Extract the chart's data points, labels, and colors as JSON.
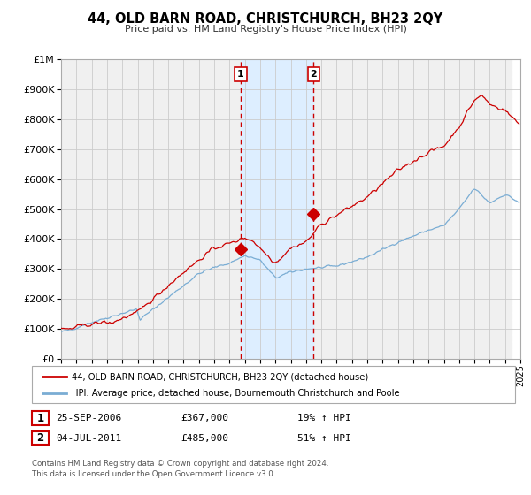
{
  "title": "44, OLD BARN ROAD, CHRISTCHURCH, BH23 2QY",
  "subtitle": "Price paid vs. HM Land Registry's House Price Index (HPI)",
  "hpi_label": "HPI: Average price, detached house, Bournemouth Christchurch and Poole",
  "property_label": "44, OLD BARN ROAD, CHRISTCHURCH, BH23 2QY (detached house)",
  "footnote1": "Contains HM Land Registry data © Crown copyright and database right 2024.",
  "footnote2": "This data is licensed under the Open Government Licence v3.0.",
  "sale1_date": "25-SEP-2006",
  "sale1_price": "£367,000",
  "sale1_hpi": "19% ↑ HPI",
  "sale2_date": "04-JUL-2011",
  "sale2_price": "£485,000",
  "sale2_hpi": "51% ↑ HPI",
  "sale1_year": 2006.73,
  "sale1_value": 367000,
  "sale2_year": 2011.5,
  "sale2_value": 485000,
  "shade_start": 2006.73,
  "shade_end": 2011.5,
  "hpi_color": "#7aadd4",
  "property_color": "#cc0000",
  "shade_color": "#ddeeff",
  "background_color": "#f0f0f0",
  "grid_color": "#cccccc",
  "ylim_min": 0,
  "ylim_max": 1000000,
  "xlim_min": 1995,
  "xlim_max": 2025
}
